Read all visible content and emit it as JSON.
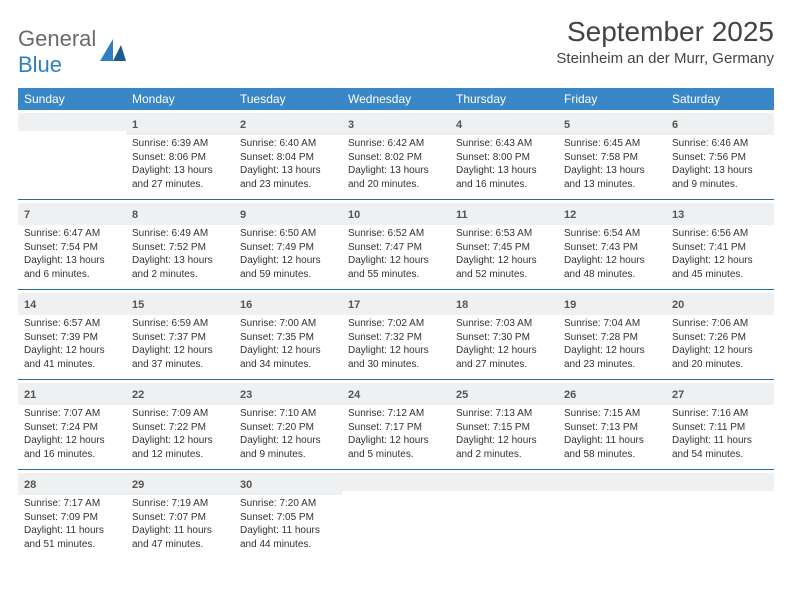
{
  "logo": {
    "text1": "General",
    "text2": "Blue"
  },
  "title": "September 2025",
  "location": "Steinheim an der Murr, Germany",
  "colors": {
    "header_bg": "#3a87c8",
    "header_text": "#ffffff",
    "daynum_bg": "#eef0f2",
    "week_border": "#2b6aa0",
    "body_text": "#333333",
    "logo_gray": "#6a6a6a",
    "logo_blue": "#2f7fc2"
  },
  "day_headers": [
    "Sunday",
    "Monday",
    "Tuesday",
    "Wednesday",
    "Thursday",
    "Friday",
    "Saturday"
  ],
  "weeks": [
    [
      {
        "day": "",
        "sunrise": "",
        "sunset": "",
        "daylight": ""
      },
      {
        "day": "1",
        "sunrise": "Sunrise: 6:39 AM",
        "sunset": "Sunset: 8:06 PM",
        "daylight": "Daylight: 13 hours and 27 minutes."
      },
      {
        "day": "2",
        "sunrise": "Sunrise: 6:40 AM",
        "sunset": "Sunset: 8:04 PM",
        "daylight": "Daylight: 13 hours and 23 minutes."
      },
      {
        "day": "3",
        "sunrise": "Sunrise: 6:42 AM",
        "sunset": "Sunset: 8:02 PM",
        "daylight": "Daylight: 13 hours and 20 minutes."
      },
      {
        "day": "4",
        "sunrise": "Sunrise: 6:43 AM",
        "sunset": "Sunset: 8:00 PM",
        "daylight": "Daylight: 13 hours and 16 minutes."
      },
      {
        "day": "5",
        "sunrise": "Sunrise: 6:45 AM",
        "sunset": "Sunset: 7:58 PM",
        "daylight": "Daylight: 13 hours and 13 minutes."
      },
      {
        "day": "6",
        "sunrise": "Sunrise: 6:46 AM",
        "sunset": "Sunset: 7:56 PM",
        "daylight": "Daylight: 13 hours and 9 minutes."
      }
    ],
    [
      {
        "day": "7",
        "sunrise": "Sunrise: 6:47 AM",
        "sunset": "Sunset: 7:54 PM",
        "daylight": "Daylight: 13 hours and 6 minutes."
      },
      {
        "day": "8",
        "sunrise": "Sunrise: 6:49 AM",
        "sunset": "Sunset: 7:52 PM",
        "daylight": "Daylight: 13 hours and 2 minutes."
      },
      {
        "day": "9",
        "sunrise": "Sunrise: 6:50 AM",
        "sunset": "Sunset: 7:49 PM",
        "daylight": "Daylight: 12 hours and 59 minutes."
      },
      {
        "day": "10",
        "sunrise": "Sunrise: 6:52 AM",
        "sunset": "Sunset: 7:47 PM",
        "daylight": "Daylight: 12 hours and 55 minutes."
      },
      {
        "day": "11",
        "sunrise": "Sunrise: 6:53 AM",
        "sunset": "Sunset: 7:45 PM",
        "daylight": "Daylight: 12 hours and 52 minutes."
      },
      {
        "day": "12",
        "sunrise": "Sunrise: 6:54 AM",
        "sunset": "Sunset: 7:43 PM",
        "daylight": "Daylight: 12 hours and 48 minutes."
      },
      {
        "day": "13",
        "sunrise": "Sunrise: 6:56 AM",
        "sunset": "Sunset: 7:41 PM",
        "daylight": "Daylight: 12 hours and 45 minutes."
      }
    ],
    [
      {
        "day": "14",
        "sunrise": "Sunrise: 6:57 AM",
        "sunset": "Sunset: 7:39 PM",
        "daylight": "Daylight: 12 hours and 41 minutes."
      },
      {
        "day": "15",
        "sunrise": "Sunrise: 6:59 AM",
        "sunset": "Sunset: 7:37 PM",
        "daylight": "Daylight: 12 hours and 37 minutes."
      },
      {
        "day": "16",
        "sunrise": "Sunrise: 7:00 AM",
        "sunset": "Sunset: 7:35 PM",
        "daylight": "Daylight: 12 hours and 34 minutes."
      },
      {
        "day": "17",
        "sunrise": "Sunrise: 7:02 AM",
        "sunset": "Sunset: 7:32 PM",
        "daylight": "Daylight: 12 hours and 30 minutes."
      },
      {
        "day": "18",
        "sunrise": "Sunrise: 7:03 AM",
        "sunset": "Sunset: 7:30 PM",
        "daylight": "Daylight: 12 hours and 27 minutes."
      },
      {
        "day": "19",
        "sunrise": "Sunrise: 7:04 AM",
        "sunset": "Sunset: 7:28 PM",
        "daylight": "Daylight: 12 hours and 23 minutes."
      },
      {
        "day": "20",
        "sunrise": "Sunrise: 7:06 AM",
        "sunset": "Sunset: 7:26 PM",
        "daylight": "Daylight: 12 hours and 20 minutes."
      }
    ],
    [
      {
        "day": "21",
        "sunrise": "Sunrise: 7:07 AM",
        "sunset": "Sunset: 7:24 PM",
        "daylight": "Daylight: 12 hours and 16 minutes."
      },
      {
        "day": "22",
        "sunrise": "Sunrise: 7:09 AM",
        "sunset": "Sunset: 7:22 PM",
        "daylight": "Daylight: 12 hours and 12 minutes."
      },
      {
        "day": "23",
        "sunrise": "Sunrise: 7:10 AM",
        "sunset": "Sunset: 7:20 PM",
        "daylight": "Daylight: 12 hours and 9 minutes."
      },
      {
        "day": "24",
        "sunrise": "Sunrise: 7:12 AM",
        "sunset": "Sunset: 7:17 PM",
        "daylight": "Daylight: 12 hours and 5 minutes."
      },
      {
        "day": "25",
        "sunrise": "Sunrise: 7:13 AM",
        "sunset": "Sunset: 7:15 PM",
        "daylight": "Daylight: 12 hours and 2 minutes."
      },
      {
        "day": "26",
        "sunrise": "Sunrise: 7:15 AM",
        "sunset": "Sunset: 7:13 PM",
        "daylight": "Daylight: 11 hours and 58 minutes."
      },
      {
        "day": "27",
        "sunrise": "Sunrise: 7:16 AM",
        "sunset": "Sunset: 7:11 PM",
        "daylight": "Daylight: 11 hours and 54 minutes."
      }
    ],
    [
      {
        "day": "28",
        "sunrise": "Sunrise: 7:17 AM",
        "sunset": "Sunset: 7:09 PM",
        "daylight": "Daylight: 11 hours and 51 minutes."
      },
      {
        "day": "29",
        "sunrise": "Sunrise: 7:19 AM",
        "sunset": "Sunset: 7:07 PM",
        "daylight": "Daylight: 11 hours and 47 minutes."
      },
      {
        "day": "30",
        "sunrise": "Sunrise: 7:20 AM",
        "sunset": "Sunset: 7:05 PM",
        "daylight": "Daylight: 11 hours and 44 minutes."
      },
      {
        "day": "",
        "sunrise": "",
        "sunset": "",
        "daylight": ""
      },
      {
        "day": "",
        "sunrise": "",
        "sunset": "",
        "daylight": ""
      },
      {
        "day": "",
        "sunrise": "",
        "sunset": "",
        "daylight": ""
      },
      {
        "day": "",
        "sunrise": "",
        "sunset": "",
        "daylight": ""
      }
    ]
  ]
}
